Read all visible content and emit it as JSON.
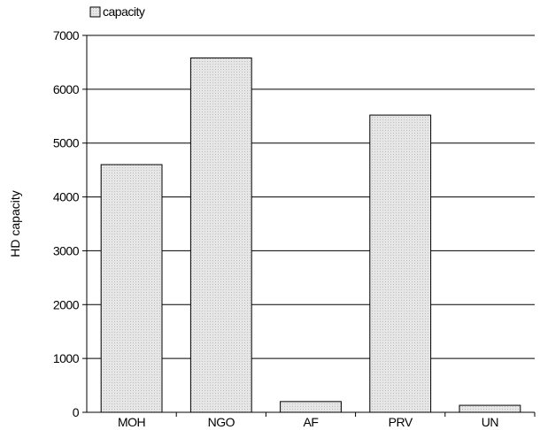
{
  "chart_data": {
    "type": "bar",
    "categories": [
      "MOH",
      "NGO",
      "AF",
      "PRV",
      "UN"
    ],
    "series": [
      {
        "name": "capacity",
        "values": [
          4600,
          6580,
          200,
          5520,
          130
        ]
      }
    ],
    "ylabel": "HD capacity",
    "xlabel": "",
    "ylim": [
      0,
      7000
    ],
    "yticks": [
      0,
      1000,
      2000,
      3000,
      4000,
      5000,
      6000,
      7000
    ],
    "grid": true,
    "legend_position": "top-left",
    "colors": {
      "bar_fill": "#e3e3e3",
      "bar_stroke": "#000000",
      "gridline": "#000000",
      "axis": "#000000"
    }
  }
}
